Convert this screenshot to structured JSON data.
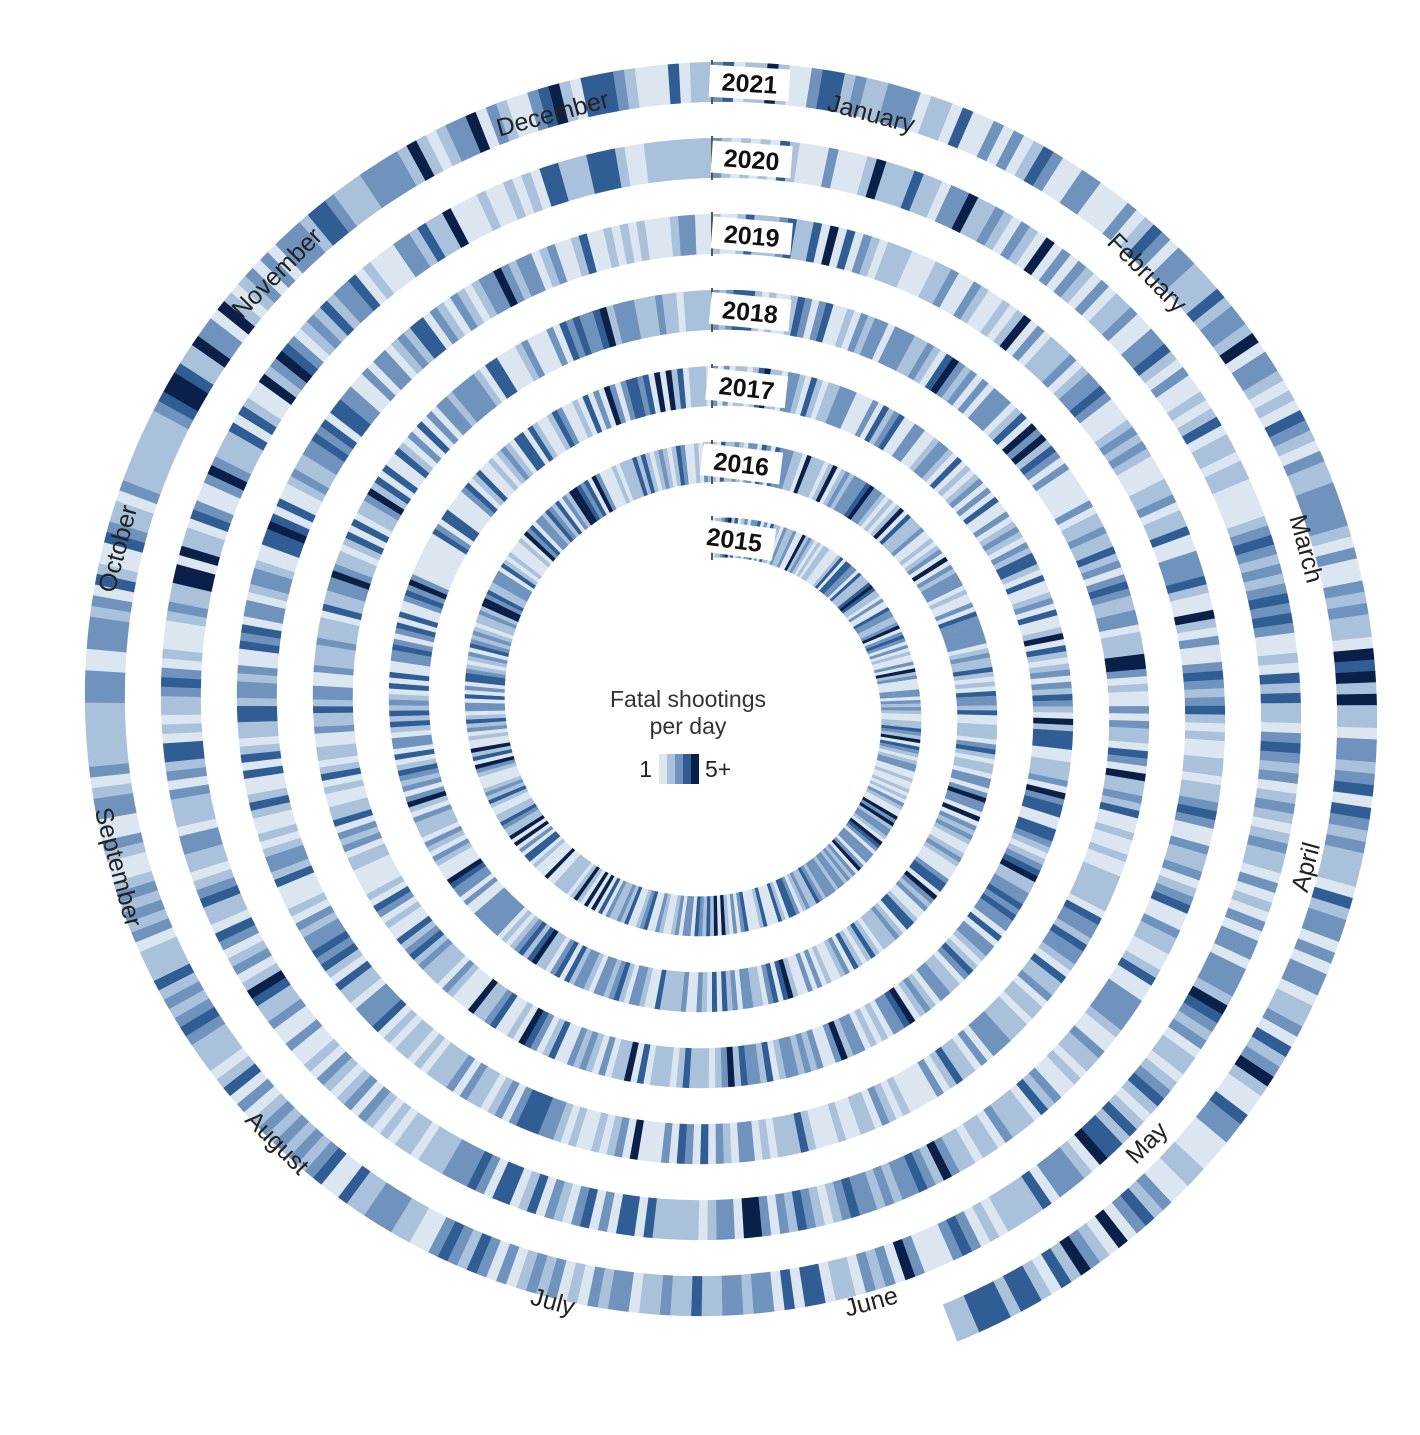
{
  "chart_data": {
    "type": "heatmap",
    "layout": "spiral",
    "legend": {
      "title_line1": "Fatal shootings",
      "title_line2": "per day",
      "low_label": "1",
      "high_label": "5+",
      "scale_values": [
        1,
        2,
        3,
        4,
        5
      ]
    },
    "colors": {
      "1": "#dbe6f0",
      "2": "#a9c1da",
      "3": "#6f93bd",
      "4": "#2f5d94",
      "5": "#0a2048",
      "divider": "#555555"
    },
    "months": [
      "January",
      "February",
      "March",
      "April",
      "May",
      "June",
      "July",
      "August",
      "September",
      "October",
      "November",
      "December"
    ],
    "series": [
      {
        "name": "2015",
        "days": 365,
        "coverage": 1.0
      },
      {
        "name": "2016",
        "days": 366,
        "coverage": 1.0
      },
      {
        "name": "2017",
        "days": 365,
        "coverage": 1.0
      },
      {
        "name": "2018",
        "days": 365,
        "coverage": 1.0
      },
      {
        "name": "2019",
        "days": 365,
        "coverage": 1.0
      },
      {
        "name": "2020",
        "days": 366,
        "coverage": 1.0
      },
      {
        "name": "2021",
        "days": 365,
        "coverage": 0.44
      }
    ]
  }
}
